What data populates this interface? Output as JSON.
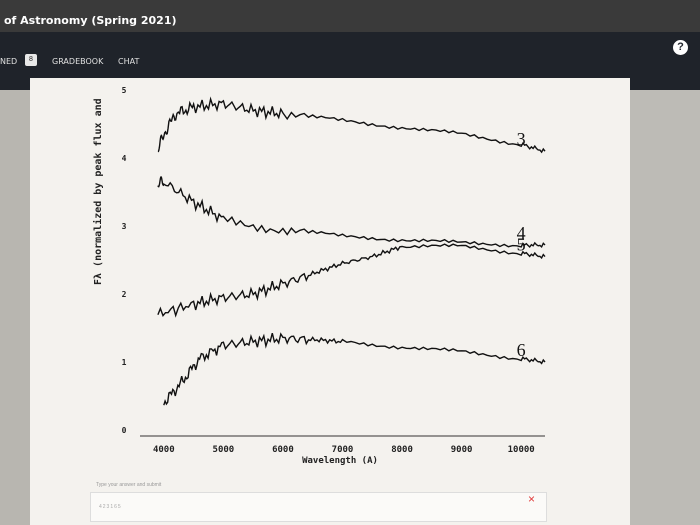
{
  "window": {
    "title": "of Astronomy (Spring 2021)"
  },
  "nav": {
    "left_fragment": "NED",
    "badge": "8",
    "gradebook": "GRADEBOOK",
    "chat": "CHAT",
    "help": "?"
  },
  "answer": {
    "hint": "Type your answer and submit",
    "value": "423165",
    "clear": "×"
  },
  "chart_data": {
    "type": "line",
    "ylabel": "Fλ (normalized by peak flux and",
    "xlabel": "Wavelength (A)",
    "xlim": [
      3600,
      10400
    ],
    "ylim": [
      0,
      5
    ],
    "xticks": [
      4000,
      5000,
      6000,
      7000,
      8000,
      9000,
      10000
    ],
    "yticks": [
      0,
      1,
      2,
      3,
      4,
      5
    ],
    "series": [
      {
        "name": "3",
        "x": [
          3900,
          4000,
          4200,
          4500,
          5000,
          5500,
          6000,
          7000,
          8000,
          9000,
          10000,
          10400
        ],
        "y": [
          4.1,
          4.35,
          4.65,
          4.75,
          4.8,
          4.7,
          4.65,
          4.55,
          4.45,
          4.35,
          4.2,
          4.1
        ]
      },
      {
        "name": "4",
        "x": [
          3900,
          4000,
          4500,
          5000,
          6000,
          7000,
          8000,
          9000,
          10000,
          10400
        ],
        "y": [
          3.6,
          3.65,
          3.35,
          3.1,
          2.95,
          2.85,
          2.8,
          2.75,
          2.72,
          2.72
        ]
      },
      {
        "name": "5",
        "x": [
          3900,
          4500,
          5000,
          5500,
          6000,
          6500,
          7000,
          7500,
          8000,
          9000,
          10000,
          10400
        ],
        "y": [
          1.7,
          1.85,
          1.95,
          2.0,
          2.15,
          2.3,
          2.45,
          2.55,
          2.7,
          2.7,
          2.6,
          2.55
        ]
      },
      {
        "name": "6",
        "x": [
          4000,
          4300,
          4600,
          5000,
          5500,
          6000,
          6500,
          7000,
          8000,
          9000,
          10000,
          10400
        ],
        "y": [
          0.4,
          0.7,
          1.05,
          1.25,
          1.3,
          1.35,
          1.33,
          1.3,
          1.22,
          1.15,
          1.05,
          1.0
        ]
      }
    ]
  }
}
